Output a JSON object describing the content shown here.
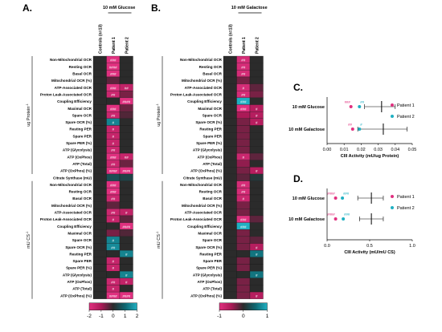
{
  "colors": {
    "neg2": "#e0307f",
    "neg1": "#ab1a57",
    "zero": "#2b2b2b",
    "pos1": "#0f6670",
    "pos2": "#1fb0c2",
    "patient1": "#e0307f",
    "patient2": "#1fb0c2",
    "empty": "#2b2b2b"
  },
  "panelA": {
    "letter": "A.",
    "condition": "10 mM Glucose",
    "columns": [
      "Controls (n=13)",
      "Patient 1",
      "Patient 2"
    ],
    "group1_label": "ug Protein",
    "group1_sup": "-1",
    "group2_label": "mU CS",
    "group2_sup": "-1",
    "scale_ticks": [
      "-2",
      "-1",
      "0",
      "1",
      "2"
    ],
    "scale_range": [
      -2,
      2
    ],
    "rows1": [
      {
        "label": "Non-Mitochondrial OCR",
        "c1": 0,
        "p1": -2,
        "p2": 0,
        "s1": "###",
        "s2": ""
      },
      {
        "label": "Resting OCR",
        "c1": 0,
        "p1": -2,
        "p2": 0,
        "s1": "####",
        "s2": ""
      },
      {
        "label": "Basal OCR",
        "c1": 0,
        "p1": -2,
        "p2": 0,
        "s1": "###",
        "s2": ""
      },
      {
        "label": "Mitochondrial OCR (%)",
        "c1": 0,
        "p1": -0.4,
        "p2": 0,
        "s1": "",
        "s2": ""
      },
      {
        "label": "ATP-Associated OCR",
        "c1": 0,
        "p1": -2,
        "p2": -1.4,
        "s1": "###",
        "s2": "##"
      },
      {
        "label": "Proton Leak-Associated OCR",
        "c1": 0,
        "p1": -1.6,
        "p2": -0.6,
        "s1": "##",
        "s2": ""
      },
      {
        "label": "Coupling Efficiency",
        "c1": 0,
        "p1": 0,
        "p2": -2,
        "s1": "",
        "s2": "####"
      },
      {
        "label": "Maximal OCR",
        "c1": 0,
        "p1": -2,
        "p2": -0.5,
        "s1": "###",
        "s2": ""
      },
      {
        "label": "Spare OCR",
        "c1": 0,
        "p1": -1.6,
        "p2": -0.3,
        "s1": "##",
        "s2": ""
      },
      {
        "label": "Spare OCR (%)",
        "c1": 0,
        "p1": 1.4,
        "p2": 0,
        "s1": "#",
        "s2": ""
      },
      {
        "label": "Resting PER",
        "c1": 0,
        "p1": -1.5,
        "p2": 0,
        "s1": "#",
        "s2": ""
      },
      {
        "label": "Spare PER",
        "c1": 0,
        "p1": -1.5,
        "p2": 0,
        "s1": "#",
        "s2": ""
      },
      {
        "label": "Spare PER (%)",
        "c1": 0,
        "p1": -1.5,
        "p2": 0,
        "s1": "#",
        "s2": ""
      },
      {
        "label": "ATP (Glycolysis)",
        "c1": 0,
        "p1": -1.6,
        "p2": 0,
        "s1": "##",
        "s2": ""
      },
      {
        "label": "ATP (OxPhos)",
        "c1": 0,
        "p1": -2,
        "p2": -1.5,
        "s1": "###",
        "s2": "##"
      },
      {
        "label": "ATP (Total)",
        "c1": 0,
        "p1": -1.6,
        "p2": -0.5,
        "s1": "##",
        "s2": ""
      },
      {
        "label": "ATP (OxPhos) (%)",
        "c1": 0,
        "p1": -2,
        "p2": -2,
        "s1": "####",
        "s2": "####"
      }
    ],
    "citrate": {
      "label": "Citrate Synthase (mU)",
      "c1": 0,
      "p1": 0.6,
      "p2": 0.4,
      "s1": "",
      "s2": ""
    },
    "rows2": [
      {
        "label": "Non-Mitochondrial OCR",
        "c1": 0,
        "p1": -2,
        "p2": 0,
        "s1": "###",
        "s2": ""
      },
      {
        "label": "Resting OCR",
        "c1": 0,
        "p1": -2,
        "p2": 0,
        "s1": "###",
        "s2": ""
      },
      {
        "label": "Basal OCR",
        "c1": 0,
        "p1": -1.6,
        "p2": 0,
        "s1": "##",
        "s2": ""
      },
      {
        "label": "Mitochondrial OCR (%)",
        "c1": 0,
        "p1": -0.4,
        "p2": 0,
        "s1": "",
        "s2": ""
      },
      {
        "label": "ATP-Associated OCR",
        "c1": 0,
        "p1": -1.6,
        "p2": -1.4,
        "s1": "##",
        "s2": "#"
      },
      {
        "label": "Proton Leak-Associated OCR",
        "c1": 0,
        "p1": -1.5,
        "p2": -0.4,
        "s1": "#",
        "s2": ""
      },
      {
        "label": "Coupling Efficiency",
        "c1": 0,
        "p1": 0,
        "p2": -2,
        "s1": "",
        "s2": "####"
      },
      {
        "label": "Maximal OCR",
        "c1": 0,
        "p1": -0.6,
        "p2": -0.3,
        "s1": "",
        "s2": ""
      },
      {
        "label": "Spare OCR",
        "c1": 0,
        "p1": 1.4,
        "p2": 0,
        "s1": "#",
        "s2": ""
      },
      {
        "label": "Spare OCR (%)",
        "c1": 0,
        "p1": 1.5,
        "p2": 0,
        "s1": "##",
        "s2": ""
      },
      {
        "label": "Resting PER",
        "c1": 0,
        "p1": 0,
        "p2": 1.4,
        "s1": "",
        "s2": "#"
      },
      {
        "label": "Spare PER",
        "c1": 0,
        "p1": -1.5,
        "p2": 0,
        "s1": "#",
        "s2": ""
      },
      {
        "label": "Spare PER (%)",
        "c1": 0,
        "p1": -1.5,
        "p2": 0,
        "s1": "#",
        "s2": ""
      },
      {
        "label": "ATP (Glycolysis)",
        "c1": 0,
        "p1": 0,
        "p2": 1.4,
        "s1": "",
        "s2": "#"
      },
      {
        "label": "ATP (OxPhos)",
        "c1": 0,
        "p1": -1.6,
        "p2": -1.4,
        "s1": "##",
        "s2": "#"
      },
      {
        "label": "ATP (Total)",
        "c1": 0,
        "p1": -1.5,
        "p2": 0,
        "s1": "#",
        "s2": ""
      },
      {
        "label": "ATP (OxPhos) (%)",
        "c1": 0,
        "p1": -2,
        "p2": -2,
        "s1": "####",
        "s2": "####"
      }
    ]
  },
  "panelB": {
    "letter": "B.",
    "condition": "10 mM Galactose",
    "columns": [
      "Controls (n=13)",
      "Patient 1",
      "Patient 2"
    ],
    "group1_label": "ug Protein",
    "group1_sup": "-1",
    "group2_label": "mU CS",
    "group2_sup": "-1",
    "scale_ticks": [
      "-1",
      "0",
      "1"
    ],
    "scale_range": [
      -1,
      1
    ],
    "rows1": [
      {
        "label": "Non-Mitochondrial OCR",
        "c1": 0,
        "p1": -0.9,
        "p2": 0,
        "s1": "##",
        "s2": ""
      },
      {
        "label": "Resting OCR",
        "c1": 0,
        "p1": -0.9,
        "p2": 0,
        "s1": "##",
        "s2": ""
      },
      {
        "label": "Basal OCR",
        "c1": 0,
        "p1": -0.9,
        "p2": 0,
        "s1": "##",
        "s2": ""
      },
      {
        "label": "Mitochondrial OCR (%)",
        "c1": 0,
        "p1": -0.3,
        "p2": 0,
        "s1": "",
        "s2": ""
      },
      {
        "label": "ATP-Associated OCR",
        "c1": 0,
        "p1": -0.9,
        "p2": -0.2,
        "s1": "#",
        "s2": ""
      },
      {
        "label": "Proton Leak-Associated OCR",
        "c1": 0,
        "p1": -0.9,
        "p2": -0.3,
        "s1": "##",
        "s2": ""
      },
      {
        "label": "Coupling Efficiency",
        "c1": 0,
        "p1": 1,
        "p2": 0,
        "s1": "###",
        "s2": ""
      },
      {
        "label": "Maximal OCR",
        "c1": 0,
        "p1": -1,
        "p2": -0.6,
        "s1": "###",
        "s2": "#"
      },
      {
        "label": "Spare OCR",
        "c1": 0,
        "p1": -0.5,
        "p2": -0.6,
        "s1": "",
        "s2": "#"
      },
      {
        "label": "Spare OCR (%)",
        "c1": 0,
        "p1": -0.3,
        "p2": -0.6,
        "s1": "",
        "s2": "#"
      },
      {
        "label": "Resting PER",
        "c1": 0,
        "p1": -0.3,
        "p2": 0,
        "s1": "",
        "s2": ""
      },
      {
        "label": "Spare PER",
        "c1": 0,
        "p1": -0.3,
        "p2": 0,
        "s1": "",
        "s2": ""
      },
      {
        "label": "Spare PER (%)",
        "c1": 0,
        "p1": -0.3,
        "p2": 0,
        "s1": "",
        "s2": ""
      },
      {
        "label": "ATP (Glycolysis)",
        "c1": 0,
        "p1": -0.3,
        "p2": 0,
        "s1": "",
        "s2": ""
      },
      {
        "label": "ATP (OxPhos)",
        "c1": 0,
        "p1": -0.8,
        "p2": -0.2,
        "s1": "#",
        "s2": ""
      },
      {
        "label": "ATP (Total)",
        "c1": 0,
        "p1": -0.4,
        "p2": 0,
        "s1": "",
        "s2": ""
      },
      {
        "label": "ATP (OxPhos) (%)",
        "c1": 0,
        "p1": -0.3,
        "p2": -0.6,
        "s1": "",
        "s2": "#"
      }
    ],
    "citrate": {
      "label": "Citrate Synthase (mU)",
      "c1": 0,
      "p1": -0.2,
      "p2": 0.1,
      "s1": "",
      "s2": ""
    },
    "rows2": [
      {
        "label": "Non-Mitochondrial OCR",
        "c1": 0,
        "p1": -0.9,
        "p2": 0,
        "s1": "##",
        "s2": ""
      },
      {
        "label": "Resting OCR",
        "c1": 0,
        "p1": -0.9,
        "p2": 0,
        "s1": "##",
        "s2": ""
      },
      {
        "label": "Basal OCR",
        "c1": 0,
        "p1": -0.8,
        "p2": 0,
        "s1": "#",
        "s2": ""
      },
      {
        "label": "Mitochondrial OCR (%)",
        "c1": 0,
        "p1": -0.3,
        "p2": 0,
        "s1": "",
        "s2": ""
      },
      {
        "label": "ATP-Associated OCR",
        "c1": 0,
        "p1": -0.3,
        "p2": 0,
        "s1": "",
        "s2": ""
      },
      {
        "label": "Proton Leak-Associated OCR",
        "c1": 0,
        "p1": -1,
        "p2": -0.2,
        "s1": "###",
        "s2": ""
      },
      {
        "label": "Coupling Efficiency",
        "c1": 0,
        "p1": 1,
        "p2": 0,
        "s1": "###",
        "s2": ""
      },
      {
        "label": "Maximal OCR",
        "c1": 0,
        "p1": -0.3,
        "p2": 0,
        "s1": "",
        "s2": ""
      },
      {
        "label": "Spare OCR",
        "c1": 0,
        "p1": -0.3,
        "p2": -0.2,
        "s1": "",
        "s2": ""
      },
      {
        "label": "Spare OCR (%)",
        "c1": 0,
        "p1": -0.3,
        "p2": -0.6,
        "s1": "",
        "s2": "#"
      },
      {
        "label": "Resting PER",
        "c1": 0,
        "p1": 0,
        "p2": 0.6,
        "s1": "",
        "s2": "#"
      },
      {
        "label": "Spare PER",
        "c1": 0,
        "p1": -0.3,
        "p2": 0,
        "s1": "",
        "s2": ""
      },
      {
        "label": "Spare PER (%)",
        "c1": 0,
        "p1": -0.3,
        "p2": 0,
        "s1": "",
        "s2": ""
      },
      {
        "label": "ATP (Glycolysis)",
        "c1": 0,
        "p1": 0,
        "p2": 0.6,
        "s1": "",
        "s2": "#"
      },
      {
        "label": "ATP (OxPhos)",
        "c1": 0,
        "p1": -0.3,
        "p2": 0,
        "s1": "",
        "s2": ""
      },
      {
        "label": "ATP (Total)",
        "c1": 0,
        "p1": -0.3,
        "p2": 0,
        "s1": "",
        "s2": ""
      },
      {
        "label": "ATP (OxPhos) (%)",
        "c1": 0,
        "p1": -0.3,
        "p2": -0.6,
        "s1": "",
        "s2": "#"
      }
    ]
  },
  "chart_data": [
    {
      "type": "scatter",
      "letter": "C.",
      "xlabel": "CIII Activity (mU/ug Protein)",
      "xlim": [
        0,
        0.05
      ],
      "xticks": [
        "0.00",
        "0.01",
        "0.02",
        "0.03",
        "0.04",
        "0.05"
      ],
      "legend_placement": "right",
      "categories": [
        "10 mM Glucose",
        "10 mM Galactose"
      ],
      "controls": [
        {
          "mean": 0.032,
          "low": 0.022,
          "high": 0.04
        },
        {
          "mean": 0.033,
          "low": 0.018,
          "high": 0.047
        }
      ],
      "series": [
        {
          "name": "Patient 1",
          "values": [
            0.014,
            0.015
          ],
          "labels": [
            "###",
            "##"
          ]
        },
        {
          "name": "Patient 2",
          "values": [
            0.019,
            0.019
          ],
          "labels": [
            "##",
            "#"
          ]
        }
      ]
    },
    {
      "type": "scatter",
      "letter": "D.",
      "xlabel": "CIII Activity (mU/mU CS)",
      "xlim": [
        0,
        1.0
      ],
      "xticks": [
        "0.0",
        "0.5",
        "1.0"
      ],
      "legend_placement": "right",
      "categories": [
        "10 mM Glucose",
        "10 mM Galactose"
      ],
      "controls": [
        {
          "mean": 0.52,
          "low": 0.36,
          "high": 0.66
        },
        {
          "mean": 0.52,
          "low": 0.38,
          "high": 0.66
        }
      ],
      "series": [
        {
          "name": "Patient 1",
          "values": [
            0.1,
            0.1
          ],
          "labels": [
            "####",
            "####"
          ]
        },
        {
          "name": "Patient 2",
          "values": [
            0.18,
            0.19
          ],
          "labels": [
            "###",
            "###"
          ]
        }
      ]
    }
  ]
}
